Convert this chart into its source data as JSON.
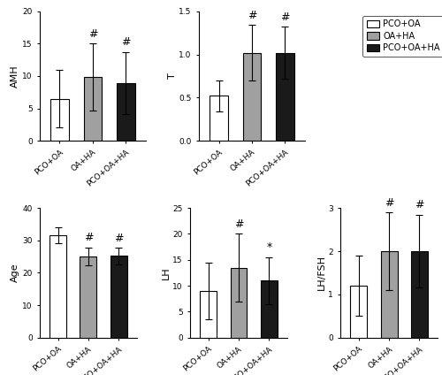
{
  "subplots": [
    {
      "ylabel": "AMH",
      "ylim": [
        0,
        20
      ],
      "yticks": [
        0,
        5,
        10,
        15,
        20
      ],
      "values": [
        6.5,
        9.8,
        8.9
      ],
      "errors": [
        4.5,
        5.2,
        4.8
      ],
      "sig": [
        "",
        "#",
        "#"
      ]
    },
    {
      "ylabel": "T",
      "ylim": [
        0.0,
        1.5
      ],
      "yticks": [
        0.0,
        0.5,
        1.0,
        1.5
      ],
      "values": [
        0.52,
        1.02,
        1.02
      ],
      "errors": [
        0.18,
        0.32,
        0.3
      ],
      "sig": [
        "",
        "#",
        "#"
      ]
    },
    {
      "ylabel": "Age",
      "ylim": [
        0,
        40
      ],
      "yticks": [
        0,
        10,
        20,
        30,
        40
      ],
      "values": [
        31.5,
        25.0,
        25.2
      ],
      "errors": [
        2.5,
        2.8,
        2.5
      ],
      "sig": [
        "",
        "#",
        "#"
      ]
    },
    {
      "ylabel": "LH",
      "ylim": [
        0,
        25
      ],
      "yticks": [
        0,
        5,
        10,
        15,
        20,
        25
      ],
      "values": [
        9.0,
        13.5,
        11.0
      ],
      "errors": [
        5.5,
        6.5,
        4.5
      ],
      "sig": [
        "",
        "#",
        "*"
      ]
    },
    {
      "ylabel": "LH/FSH",
      "ylim": [
        0,
        3
      ],
      "yticks": [
        0,
        1,
        2,
        3
      ],
      "values": [
        1.2,
        2.0,
        2.0
      ],
      "errors": [
        0.7,
        0.9,
        0.85
      ],
      "sig": [
        "",
        "#",
        "#"
      ]
    }
  ],
  "categories": [
    "PCO+OA",
    "OA+HA",
    "PCO+OA+HA"
  ],
  "bar_colors": [
    "#ffffff",
    "#a0a0a0",
    "#1a1a1a"
  ],
  "bar_edgecolor": "#000000",
  "legend_labels": [
    "PCO+OA",
    "OA+HA",
    "PCO+OA+HA"
  ],
  "legend_colors": [
    "#ffffff",
    "#a0a0a0",
    "#1a1a1a"
  ],
  "bar_width": 0.55,
  "capsize": 3,
  "sig_fontsize": 9,
  "tick_fontsize": 6.5,
  "label_fontsize": 8,
  "legend_fontsize": 7
}
